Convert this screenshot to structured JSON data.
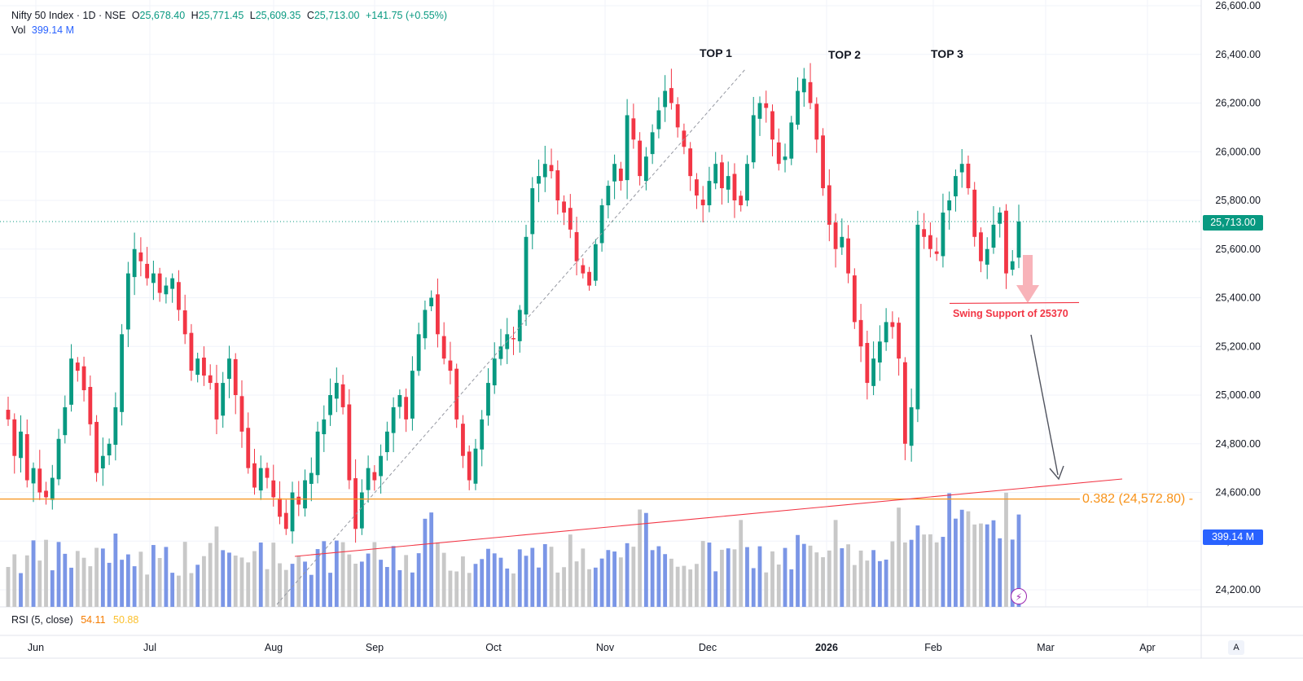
{
  "legend": {
    "symbol": "Nifty 50 Index · 1D · NSE",
    "o_label": "O",
    "o_value": "25,678.40",
    "h_label": "H",
    "h_value": "25,771.45",
    "l_label": "L",
    "l_value": "25,609.35",
    "c_label": "C",
    "c_value": "25,713.00",
    "change": "+141.75 (+0.55%)",
    "vol_label": "Vol",
    "vol_value": "399.14 M"
  },
  "rsi": {
    "label": "RSI (5, close)",
    "value1": "54.11",
    "value2": "50.88"
  },
  "price_tag": "25,713.00",
  "vol_tag": "399.14 M",
  "fib_label": "0.382 (24,572.80) -",
  "annotations": {
    "top1": "TOP 1",
    "top2": "TOP 2",
    "top3": "TOP 3",
    "swing": "Swing Support of 25370"
  },
  "auto_button": "A",
  "colors": {
    "up": "#089981",
    "down": "#f23645",
    "vol_up": "#7b96e6",
    "vol_down": "#c8c8c8",
    "fib": "#f7931a",
    "trend": "#f23645"
  },
  "chart_data": {
    "type": "candlestick",
    "title": "Nifty 50 Index · 1D · NSE",
    "y_ticks": [
      "24,200.00",
      "24,400.00",
      "24,600.00",
      "24,800.00",
      "25,000.00",
      "25,200.00",
      "25,400.00",
      "25,600.00",
      "25,800.00",
      "26,000.00",
      "26,200.00",
      "26,400.00",
      "26,600.00"
    ],
    "ylim": [
      24150,
      26620
    ],
    "x_ticks": [
      "Jun",
      "Jul",
      "Aug",
      "Sep",
      "Oct",
      "Nov",
      "Dec",
      "2026",
      "Feb",
      "Mar",
      "Apr"
    ],
    "last_close": 25713.0,
    "fib_level": 24572.8,
    "swing_support": 25370,
    "closes": [
      24900,
      24750,
      24850,
      24650,
      24700,
      24600,
      24580,
      24660,
      24820,
      24950,
      25150,
      25100,
      25020,
      24880,
      24680,
      24750,
      24800,
      24950,
      25250,
      25500,
      25600,
      25550,
      25480,
      25500,
      25420,
      25450,
      25480,
      25350,
      25250,
      25100,
      25150,
      25080,
      25050,
      24900,
      25050,
      25150,
      25000,
      24850,
      24700,
      24620,
      24700,
      24660,
      24580,
      24500,
      24450,
      24600,
      24550,
      24650,
      24680,
      24850,
      24900,
      25000,
      25050,
      24950,
      24650,
      24450,
      24600,
      24700,
      24650,
      24750,
      24850,
      24950,
      25000,
      24900,
      25100,
      25250,
      25350,
      25400,
      25250,
      25150,
      25100,
      24900,
      24750,
      24650,
      24780,
      24900,
      25050,
      25150,
      25200,
      25250,
      25230,
      25350,
      25650,
      25850,
      25900,
      25950,
      25920,
      25800,
      25750,
      25680,
      25550,
      25500,
      25450,
      25620,
      25780,
      25860,
      25950,
      25880,
      26150,
      26050,
      25900,
      25980,
      26080,
      26170,
      26250,
      26200,
      26100,
      26020,
      25900,
      25820,
      25780,
      25880,
      25950,
      25850,
      25900,
      25800,
      25780,
      25950,
      26150,
      26200,
      26180,
      26050,
      25950,
      25980,
      26120,
      26250,
      26300,
      26200,
      26050,
      25850,
      25700,
      25600,
      25650,
      25500,
      25300,
      25200,
      25050,
      25150,
      25220,
      25300,
      25280,
      25150,
      24800,
      24950,
      25700,
      25650,
      25600,
      25580,
      25750,
      25800,
      25900,
      25950,
      25850,
      25650,
      25550,
      25600,
      25700,
      25750,
      25500,
      25550,
      25713
    ],
    "volume_last": "399.14 M"
  }
}
